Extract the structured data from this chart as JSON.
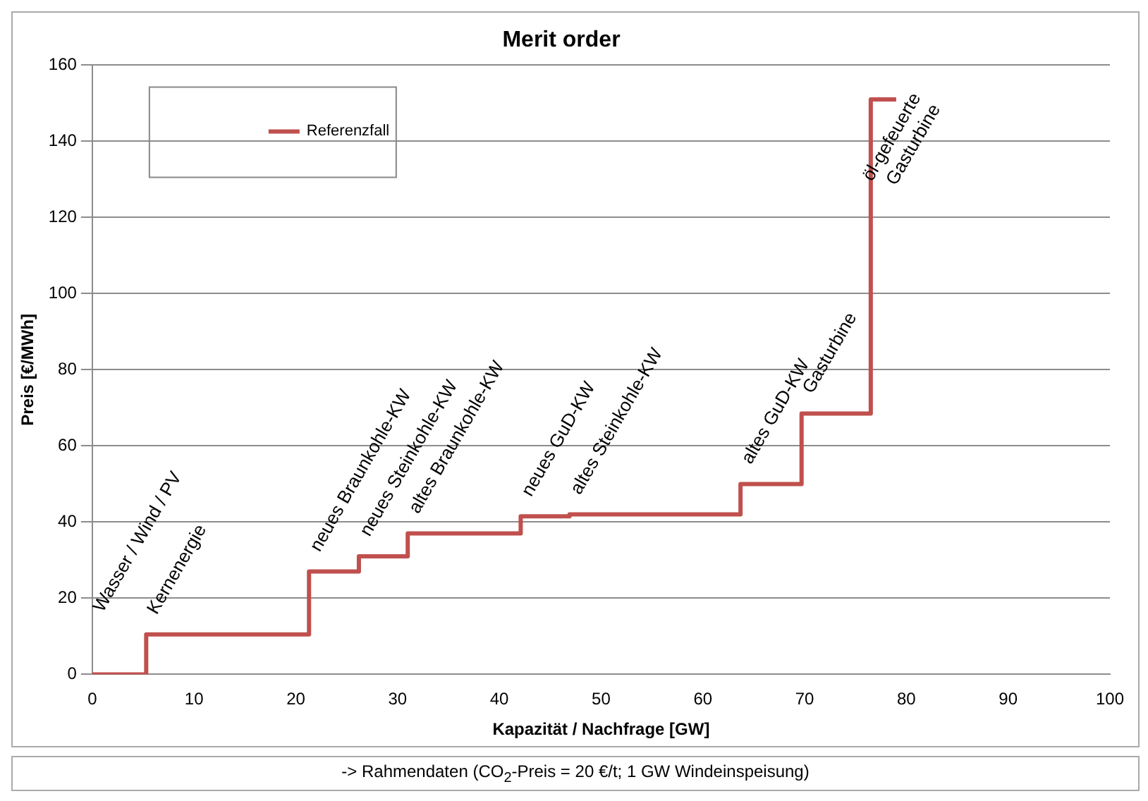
{
  "chart_data": {
    "type": "step",
    "title": "Merit order",
    "xlabel": "Kapazität / Nachfrage [GW]",
    "ylabel": "Preis [€/MWh]",
    "x": [
      0,
      5.3,
      21.3,
      26.2,
      31.0,
      42.1,
      46.9,
      63.7,
      69.7,
      76.5,
      79.0
    ],
    "series": [
      {
        "name": "Referenzfall",
        "color": "#c0504d",
        "values": [
          0,
          10.5,
          27,
          31,
          37,
          41.5,
          42,
          50,
          68.5,
          151,
          151
        ]
      }
    ],
    "xlim": [
      0,
      100
    ],
    "xticks": [
      0,
      10,
      20,
      30,
      40,
      50,
      60,
      70,
      80,
      90,
      100
    ],
    "ylim": [
      0,
      160
    ],
    "yticks": [
      0,
      20,
      40,
      60,
      80,
      100,
      120,
      140,
      160
    ],
    "grid": "y",
    "legend": "top left",
    "marker": "none",
    "line_style": "solid",
    "annotations": [
      "Wasser / Wind / PV",
      "Kernenergie",
      "neues Braunkohle-KW",
      "neues Steinkohle-KW",
      "altes Braunkohle-KW",
      "neues GuD-KW",
      "altes Steinkohle-KW",
      "altes GuD-KW",
      "Gasturbine",
      "öl-gefeuerte\nGasturbine",
      "-> Rahmendaten (CO$_{2}$-Preis = 20 €/t; 1 GW Windeinspeisung)"
    ]
  }
}
